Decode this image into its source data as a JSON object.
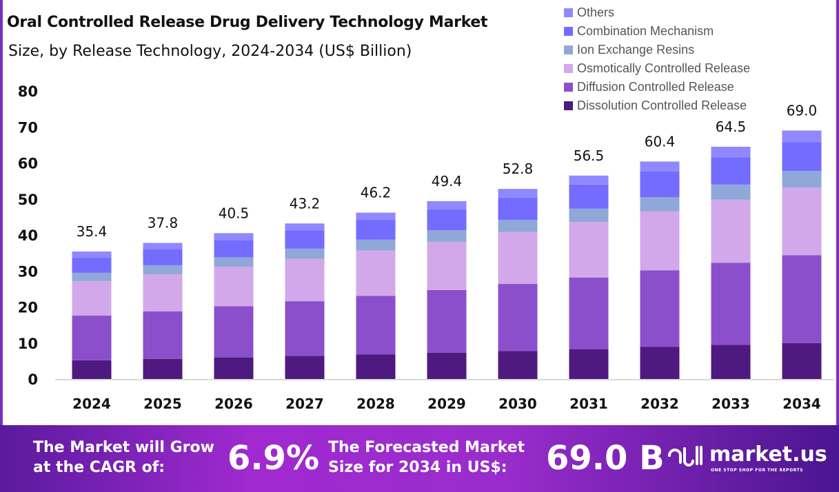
{
  "title": "Oral Controlled Release Drug Delivery Technology Market",
  "subtitle": "Size, by Release Technology, 2024-2034 (US$ Billion)",
  "chart_data": {
    "type": "bar",
    "stacked": true,
    "categories": [
      "2024",
      "2025",
      "2026",
      "2027",
      "2028",
      "2029",
      "2030",
      "2031",
      "2032",
      "2033",
      "2034"
    ],
    "totals": [
      "35.4",
      "37.8",
      "40.5",
      "43.2",
      "46.2",
      "49.4",
      "52.8",
      "56.5",
      "60.4",
      "64.5",
      "69.0"
    ],
    "ylim": [
      0,
      80
    ],
    "yticks": [
      "0",
      "10",
      "20",
      "30",
      "40",
      "50",
      "60",
      "70",
      "80"
    ],
    "legend_position": "top-right",
    "grid": false,
    "series": [
      {
        "name": "Dissolution Controlled Release",
        "color": "#4e1a80",
        "values": [
          5.2,
          5.6,
          6.0,
          6.4,
          6.8,
          7.3,
          7.8,
          8.3,
          8.9,
          9.5,
          10.0
        ]
      },
      {
        "name": "Diffusion Controlled Release",
        "color": "#8b4fcc",
        "values": [
          12.4,
          13.2,
          14.2,
          15.2,
          16.3,
          17.4,
          18.6,
          19.9,
          21.3,
          22.8,
          24.4
        ]
      },
      {
        "name": "Osmotically Controlled Release",
        "color": "#d2a8ea",
        "values": [
          9.6,
          10.3,
          11.0,
          11.8,
          12.6,
          13.4,
          14.4,
          15.4,
          16.4,
          17.5,
          18.8
        ]
      },
      {
        "name": "Ion Exchange Resins",
        "color": "#8fa8d8",
        "values": [
          2.3,
          2.5,
          2.6,
          2.8,
          3.0,
          3.2,
          3.4,
          3.7,
          3.9,
          4.2,
          4.6
        ]
      },
      {
        "name": "Combination Mechanism",
        "color": "#736cff",
        "values": [
          4.2,
          4.5,
          4.8,
          5.1,
          5.5,
          5.8,
          6.2,
          6.7,
          7.1,
          7.6,
          8.0
        ]
      },
      {
        "name": "Others",
        "color": "#8f88ff",
        "values": [
          1.7,
          1.7,
          1.9,
          1.9,
          2.0,
          2.3,
          2.4,
          2.5,
          2.8,
          2.9,
          3.2
        ]
      }
    ]
  },
  "footer": {
    "cagr_label_1": "The Market will Grow",
    "cagr_label_2": "at the CAGR of:",
    "cagr_value": "6.9%",
    "forecast_label_1": "The Forecasted Market",
    "forecast_label_2": "Size for 2034 in US$:",
    "forecast_value": "69.0 B",
    "logo_name": "market.us",
    "logo_tagline": "ONE STOP SHOP FOR THE REPORTS"
  }
}
